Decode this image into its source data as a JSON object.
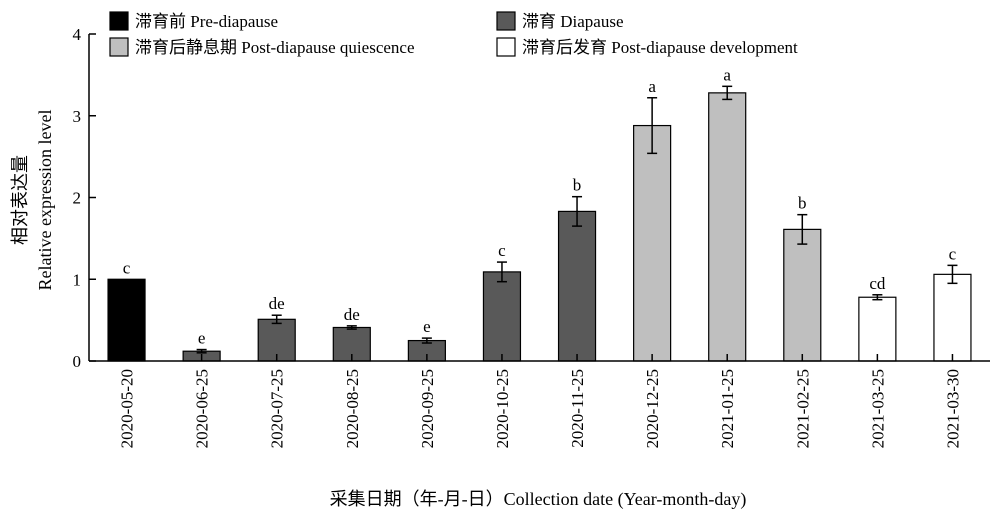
{
  "chart_data": {
    "type": "bar",
    "title": "",
    "xlabel": "采集日期（年-月-日）Collection date (Year-month-day)",
    "ylabel_cn": "相对表达量",
    "ylabel": "Relative expression level",
    "ylim": [
      0,
      4
    ],
    "yticks": [
      0,
      1,
      2,
      3,
      4
    ],
    "grid": false,
    "legend_position": "top",
    "categories": [
      "2020-05-20",
      "2020-06-25",
      "2020-07-25",
      "2020-08-25",
      "2020-09-25",
      "2020-10-25",
      "2020-11-25",
      "2020-12-25",
      "2021-01-25",
      "2021-02-25",
      "2021-03-25",
      "2021-03-30"
    ],
    "values": [
      1.0,
      0.12,
      0.51,
      0.41,
      0.25,
      1.09,
      1.83,
      2.88,
      3.28,
      1.61,
      0.78,
      1.06
    ],
    "errors": [
      0.0,
      0.02,
      0.05,
      0.02,
      0.03,
      0.12,
      0.18,
      0.34,
      0.08,
      0.18,
      0.03,
      0.11
    ],
    "letters": [
      "c",
      "e",
      "de",
      "de",
      "e",
      "c",
      "b",
      "a",
      "a",
      "b",
      "cd",
      "c"
    ],
    "groups": [
      "pre",
      "dia",
      "dia",
      "dia",
      "dia",
      "dia",
      "dia",
      "quiesc",
      "quiesc",
      "quiesc",
      "dev",
      "dev"
    ],
    "series": [
      {
        "key": "pre",
        "name": "滞育前 Pre-diapause",
        "color": "#000000"
      },
      {
        "key": "dia",
        "name": "滞育 Diapause",
        "color": "#595959"
      },
      {
        "key": "quiesc",
        "name": "滞育后静息期 Post-diapause quiescence",
        "color": "#bfbfbf"
      },
      {
        "key": "dev",
        "name": "滞育后发育 Post-diapause development",
        "color": "#ffffff"
      }
    ]
  }
}
